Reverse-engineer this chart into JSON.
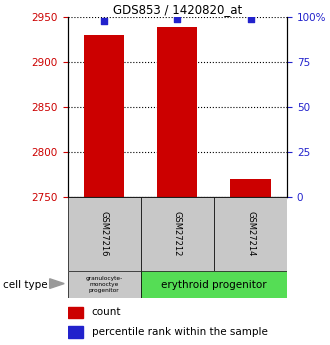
{
  "title": "GDS853 / 1420820_at",
  "samples": [
    "GSM27216",
    "GSM27212",
    "GSM27214"
  ],
  "counts": [
    2930,
    2939,
    2770
  ],
  "percentiles": [
    98,
    99,
    99
  ],
  "ylim_left": [
    2750,
    2950
  ],
  "yticks_left": [
    2750,
    2800,
    2850,
    2900,
    2950
  ],
  "yticks_right": [
    0,
    25,
    50,
    75,
    100
  ],
  "ytick_right_labels": [
    "0",
    "25",
    "50",
    "75",
    "100%"
  ],
  "bar_color": "#cc0000",
  "dot_color": "#2222cc",
  "cell_type_granulocyte": "granulocyte-\nmonoctye\nprogenitor",
  "cell_type_erythroid": "erythroid progenitor",
  "cell_type_label": "cell type",
  "left_tick_color": "#cc0000",
  "right_tick_color": "#2222cc",
  "bar_bottom": 2750,
  "bar_width": 0.55,
  "sample_box_color": "#c8c8c8",
  "granulocyte_box_color": "#c8c8c8",
  "erythroid_box_color": "#55dd55"
}
